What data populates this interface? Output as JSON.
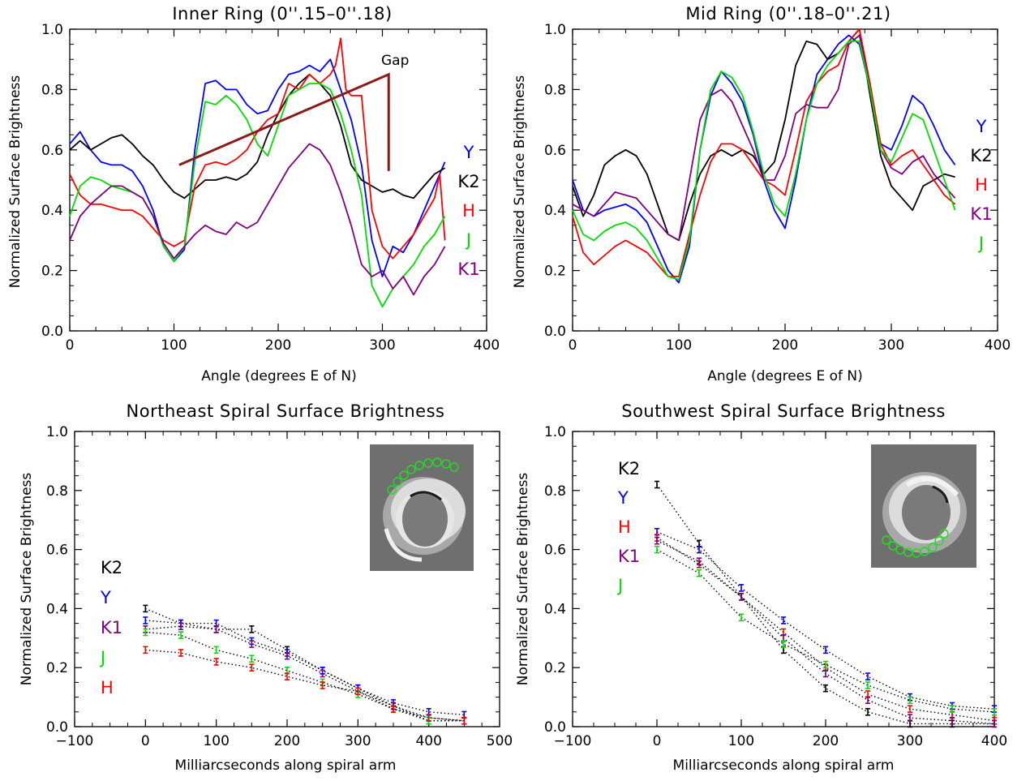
{
  "chart_data": [
    {
      "type": "line",
      "title": "Inner Ring (0''.15–0''.18)",
      "xlabel": "Angle (degrees E of N)",
      "ylabel": "Normalized Surface Brightness",
      "xlim": [
        0,
        400
      ],
      "ylim": [
        0,
        1.0
      ],
      "xticks": [
        "0",
        "100",
        "200",
        "300",
        "400"
      ],
      "yticks": [
        "0.0",
        "0.2",
        "0.4",
        "0.6",
        "0.8",
        "1.0"
      ],
      "legend": [
        "Y",
        "K2",
        "H",
        "J",
        "K1"
      ],
      "annotation": "Gap",
      "series": [
        {
          "name": "Y",
          "color": "#0000ff",
          "x": [
            0,
            10,
            20,
            30,
            40,
            50,
            60,
            70,
            80,
            90,
            100,
            110,
            120,
            130,
            140,
            150,
            160,
            170,
            180,
            190,
            200,
            210,
            220,
            230,
            240,
            250,
            260,
            270,
            280,
            290,
            300,
            310,
            320,
            330,
            340,
            350,
            360
          ],
          "y": [
            0.62,
            0.66,
            0.6,
            0.56,
            0.55,
            0.55,
            0.53,
            0.48,
            0.4,
            0.28,
            0.23,
            0.27,
            0.6,
            0.82,
            0.83,
            0.8,
            0.8,
            0.75,
            0.72,
            0.73,
            0.8,
            0.85,
            0.86,
            0.88,
            0.86,
            0.9,
            0.8,
            0.7,
            0.55,
            0.3,
            0.18,
            0.28,
            0.26,
            0.32,
            0.4,
            0.48,
            0.56
          ]
        },
        {
          "name": "K2",
          "color": "#000000",
          "x": [
            0,
            10,
            20,
            30,
            40,
            50,
            60,
            70,
            80,
            90,
            100,
            110,
            120,
            130,
            140,
            150,
            160,
            170,
            180,
            190,
            200,
            210,
            220,
            230,
            240,
            250,
            260,
            270,
            280,
            290,
            300,
            310,
            320,
            330,
            340,
            350,
            360
          ],
          "y": [
            0.6,
            0.63,
            0.6,
            0.62,
            0.64,
            0.65,
            0.62,
            0.58,
            0.55,
            0.5,
            0.46,
            0.44,
            0.47,
            0.5,
            0.5,
            0.51,
            0.5,
            0.52,
            0.56,
            0.65,
            0.72,
            0.78,
            0.82,
            0.85,
            0.82,
            0.78,
            0.68,
            0.55,
            0.5,
            0.48,
            0.46,
            0.47,
            0.45,
            0.44,
            0.48,
            0.52,
            0.54
          ]
        },
        {
          "name": "H",
          "color": "#ff0000",
          "x": [
            0,
            10,
            20,
            30,
            40,
            50,
            60,
            70,
            80,
            90,
            100,
            110,
            120,
            130,
            140,
            150,
            160,
            170,
            180,
            190,
            200,
            210,
            220,
            230,
            240,
            250,
            255,
            260,
            265,
            270,
            280,
            290,
            300,
            310,
            320,
            330,
            340,
            350,
            355,
            360
          ],
          "y": [
            0.52,
            0.45,
            0.42,
            0.42,
            0.41,
            0.4,
            0.4,
            0.38,
            0.34,
            0.3,
            0.28,
            0.3,
            0.48,
            0.55,
            0.56,
            0.55,
            0.57,
            0.6,
            0.66,
            0.7,
            0.72,
            0.82,
            0.8,
            0.85,
            0.82,
            0.85,
            0.88,
            0.97,
            0.8,
            0.78,
            0.78,
            0.4,
            0.28,
            0.24,
            0.28,
            0.32,
            0.38,
            0.44,
            0.52,
            0.3
          ]
        },
        {
          "name": "J",
          "color": "#00dd00",
          "x": [
            0,
            10,
            20,
            30,
            40,
            50,
            60,
            70,
            80,
            90,
            100,
            110,
            120,
            130,
            140,
            150,
            160,
            170,
            180,
            190,
            200,
            210,
            220,
            230,
            240,
            250,
            260,
            270,
            280,
            290,
            300,
            310,
            320,
            330,
            340,
            350,
            360
          ],
          "y": [
            0.38,
            0.48,
            0.51,
            0.5,
            0.48,
            0.47,
            0.46,
            0.44,
            0.38,
            0.28,
            0.23,
            0.28,
            0.56,
            0.76,
            0.75,
            0.78,
            0.75,
            0.7,
            0.62,
            0.58,
            0.68,
            0.78,
            0.8,
            0.82,
            0.82,
            0.8,
            0.72,
            0.6,
            0.45,
            0.15,
            0.08,
            0.14,
            0.18,
            0.22,
            0.28,
            0.32,
            0.38
          ]
        },
        {
          "name": "K1",
          "color": "#800080",
          "x": [
            0,
            10,
            20,
            30,
            40,
            50,
            60,
            70,
            80,
            90,
            100,
            110,
            120,
            130,
            140,
            150,
            160,
            170,
            180,
            190,
            200,
            210,
            220,
            230,
            240,
            250,
            260,
            270,
            280,
            290,
            300,
            310,
            320,
            330,
            340,
            350,
            360
          ],
          "y": [
            0.3,
            0.38,
            0.42,
            0.45,
            0.48,
            0.48,
            0.46,
            0.44,
            0.38,
            0.29,
            0.24,
            0.28,
            0.32,
            0.35,
            0.33,
            0.32,
            0.36,
            0.34,
            0.36,
            0.42,
            0.48,
            0.54,
            0.58,
            0.62,
            0.6,
            0.55,
            0.46,
            0.35,
            0.22,
            0.18,
            0.2,
            0.14,
            0.18,
            0.12,
            0.18,
            0.22,
            0.28
          ]
        }
      ]
    },
    {
      "type": "line",
      "title": "Mid Ring (0''.18–0''.21)",
      "xlabel": "Angle (degrees E of N)",
      "ylabel": "Normalized Surface Brightness",
      "xlim": [
        0,
        400
      ],
      "ylim": [
        0,
        1.0
      ],
      "xticks": [
        "0",
        "100",
        "200",
        "300",
        "400"
      ],
      "yticks": [
        "0.0",
        "0.2",
        "0.4",
        "0.6",
        "0.8",
        "1.0"
      ],
      "legend": [
        "Y",
        "K2",
        "H",
        "K1",
        "J"
      ],
      "series": [
        {
          "name": "Y",
          "color": "#0000ff",
          "x": [
            0,
            10,
            20,
            30,
            40,
            50,
            60,
            70,
            80,
            90,
            100,
            110,
            120,
            130,
            140,
            150,
            160,
            170,
            180,
            190,
            200,
            210,
            220,
            230,
            240,
            250,
            260,
            270,
            280,
            290,
            300,
            310,
            320,
            330,
            340,
            350,
            360
          ],
          "y": [
            0.5,
            0.4,
            0.38,
            0.4,
            0.41,
            0.42,
            0.4,
            0.36,
            0.28,
            0.2,
            0.16,
            0.28,
            0.6,
            0.78,
            0.86,
            0.82,
            0.76,
            0.65,
            0.5,
            0.4,
            0.34,
            0.5,
            0.7,
            0.85,
            0.9,
            0.95,
            0.98,
            0.95,
            0.8,
            0.62,
            0.6,
            0.68,
            0.78,
            0.75,
            0.68,
            0.6,
            0.55
          ]
        },
        {
          "name": "K2",
          "color": "#000000",
          "x": [
            0,
            10,
            20,
            30,
            40,
            50,
            60,
            70,
            80,
            90,
            100,
            110,
            120,
            130,
            140,
            150,
            160,
            170,
            180,
            190,
            200,
            210,
            220,
            230,
            240,
            250,
            260,
            270,
            280,
            290,
            300,
            310,
            320,
            330,
            340,
            350,
            360
          ],
          "y": [
            0.48,
            0.38,
            0.45,
            0.55,
            0.58,
            0.6,
            0.58,
            0.52,
            0.42,
            0.32,
            0.3,
            0.42,
            0.52,
            0.58,
            0.6,
            0.58,
            0.6,
            0.58,
            0.52,
            0.56,
            0.7,
            0.88,
            0.96,
            0.95,
            0.9,
            0.92,
            0.96,
            1.0,
            0.78,
            0.58,
            0.48,
            0.44,
            0.4,
            0.48,
            0.5,
            0.52,
            0.51
          ]
        },
        {
          "name": "H",
          "color": "#ff0000",
          "x": [
            0,
            10,
            20,
            30,
            40,
            50,
            60,
            70,
            80,
            90,
            100,
            110,
            120,
            130,
            140,
            150,
            160,
            170,
            180,
            190,
            200,
            210,
            220,
            230,
            240,
            250,
            260,
            270,
            280,
            290,
            300,
            310,
            320,
            330,
            340,
            350,
            360
          ],
          "y": [
            0.38,
            0.26,
            0.22,
            0.25,
            0.28,
            0.3,
            0.28,
            0.26,
            0.22,
            0.18,
            0.18,
            0.32,
            0.45,
            0.56,
            0.62,
            0.62,
            0.6,
            0.55,
            0.5,
            0.48,
            0.45,
            0.6,
            0.76,
            0.82,
            0.86,
            0.88,
            0.96,
            1.0,
            0.82,
            0.62,
            0.55,
            0.58,
            0.6,
            0.55,
            0.5,
            0.45,
            0.42
          ]
        },
        {
          "name": "K1",
          "color": "#800080",
          "x": [
            0,
            10,
            20,
            30,
            40,
            50,
            60,
            70,
            80,
            90,
            100,
            110,
            120,
            130,
            140,
            150,
            160,
            170,
            180,
            190,
            200,
            210,
            220,
            230,
            240,
            250,
            260,
            270,
            280,
            290,
            300,
            310,
            320,
            330,
            340,
            350,
            360
          ],
          "y": [
            0.42,
            0.4,
            0.38,
            0.42,
            0.46,
            0.45,
            0.44,
            0.4,
            0.36,
            0.32,
            0.3,
            0.5,
            0.7,
            0.78,
            0.8,
            0.76,
            0.68,
            0.6,
            0.5,
            0.5,
            0.58,
            0.72,
            0.75,
            0.74,
            0.74,
            0.8,
            0.95,
            0.98,
            0.8,
            0.6,
            0.54,
            0.52,
            0.56,
            0.58,
            0.52,
            0.48,
            0.44
          ]
        },
        {
          "name": "J",
          "color": "#00dd00",
          "x": [
            0,
            10,
            20,
            30,
            40,
            50,
            60,
            70,
            80,
            90,
            100,
            110,
            120,
            130,
            140,
            150,
            160,
            170,
            180,
            190,
            200,
            210,
            220,
            230,
            240,
            250,
            260,
            270,
            280,
            290,
            300,
            310,
            320,
            330,
            340,
            350,
            360
          ],
          "y": [
            0.4,
            0.32,
            0.3,
            0.33,
            0.35,
            0.36,
            0.34,
            0.3,
            0.24,
            0.18,
            0.17,
            0.3,
            0.6,
            0.8,
            0.86,
            0.84,
            0.78,
            0.66,
            0.52,
            0.42,
            0.38,
            0.52,
            0.7,
            0.82,
            0.88,
            0.92,
            0.96,
            0.96,
            0.8,
            0.6,
            0.56,
            0.64,
            0.72,
            0.7,
            0.6,
            0.5,
            0.4
          ]
        }
      ]
    },
    {
      "type": "line",
      "title": "Northeast Spiral Surface Brightness",
      "xlabel": "Milliarcseconds along spiral arm",
      "ylabel": "Normalized Surface Brightness",
      "xlim": [
        -100,
        500
      ],
      "ylim": [
        0,
        1.0
      ],
      "xticks": [
        "−100",
        "0",
        "100",
        "200",
        "300",
        "400",
        "500"
      ],
      "yticks": [
        "0.0",
        "0.2",
        "0.4",
        "0.6",
        "0.8",
        "1.0"
      ],
      "legend": [
        "K2",
        "Y",
        "K1",
        "J",
        "H"
      ],
      "inset": "image of disk with green circles along the northeast arm",
      "x": [
        0,
        50,
        100,
        150,
        200,
        250,
        300,
        350,
        400,
        450
      ],
      "series": [
        {
          "name": "K2",
          "color": "#000000",
          "y": [
            0.4,
            0.35,
            0.33,
            0.33,
            0.26,
            0.19,
            0.13,
            0.07,
            0.02,
            0.02
          ]
        },
        {
          "name": "Y",
          "color": "#0000ff",
          "y": [
            0.36,
            0.35,
            0.35,
            0.29,
            0.25,
            0.19,
            0.13,
            0.08,
            0.05,
            0.04
          ]
        },
        {
          "name": "K1",
          "color": "#800080",
          "y": [
            0.33,
            0.34,
            0.33,
            0.28,
            0.24,
            0.18,
            0.12,
            0.07,
            0.03,
            0.02
          ]
        },
        {
          "name": "J",
          "color": "#00dd00",
          "y": [
            0.32,
            0.31,
            0.26,
            0.23,
            0.19,
            0.15,
            0.11,
            0.06,
            0.02,
            0.02
          ]
        },
        {
          "name": "H",
          "color": "#ff0000",
          "y": [
            0.26,
            0.25,
            0.22,
            0.2,
            0.17,
            0.14,
            0.12,
            0.06,
            0.03,
            0.02
          ]
        }
      ]
    },
    {
      "type": "line",
      "title": "Southwest Spiral Surface Brightness",
      "xlabel": "Milliarcseconds along spiral arm",
      "ylabel": "Normalized Surface Brightness",
      "xlim": [
        -100,
        400
      ],
      "ylim": [
        0,
        1.0
      ],
      "xticks": [
        "−100",
        "0",
        "100",
        "200",
        "300",
        "400"
      ],
      "yticks": [
        "0.0",
        "0.2",
        "0.4",
        "0.6",
        "0.8",
        "1.0"
      ],
      "legend": [
        "K2",
        "Y",
        "H",
        "K1",
        "J"
      ],
      "inset": "image of disk with green circles along the southwest arm",
      "x": [
        0,
        50,
        100,
        150,
        200,
        250,
        300,
        350,
        400
      ],
      "series": [
        {
          "name": "K2",
          "color": "#000000",
          "y": [
            0.82,
            0.62,
            0.44,
            0.26,
            0.13,
            0.05,
            0.01,
            0.01,
            0.01
          ]
        },
        {
          "name": "Y",
          "color": "#0000ff",
          "y": [
            0.66,
            0.6,
            0.47,
            0.36,
            0.26,
            0.17,
            0.1,
            0.07,
            0.06
          ]
        },
        {
          "name": "H",
          "color": "#ff0000",
          "y": [
            0.64,
            0.55,
            0.44,
            0.32,
            0.2,
            0.11,
            0.06,
            0.04,
            0.02
          ]
        },
        {
          "name": "K1",
          "color": "#800080",
          "y": [
            0.63,
            0.56,
            0.44,
            0.3,
            0.18,
            0.09,
            0.03,
            0.02,
            0.01
          ]
        },
        {
          "name": "J",
          "color": "#00dd00",
          "y": [
            0.6,
            0.52,
            0.37,
            0.28,
            0.21,
            0.14,
            0.09,
            0.06,
            0.05
          ]
        }
      ]
    }
  ]
}
